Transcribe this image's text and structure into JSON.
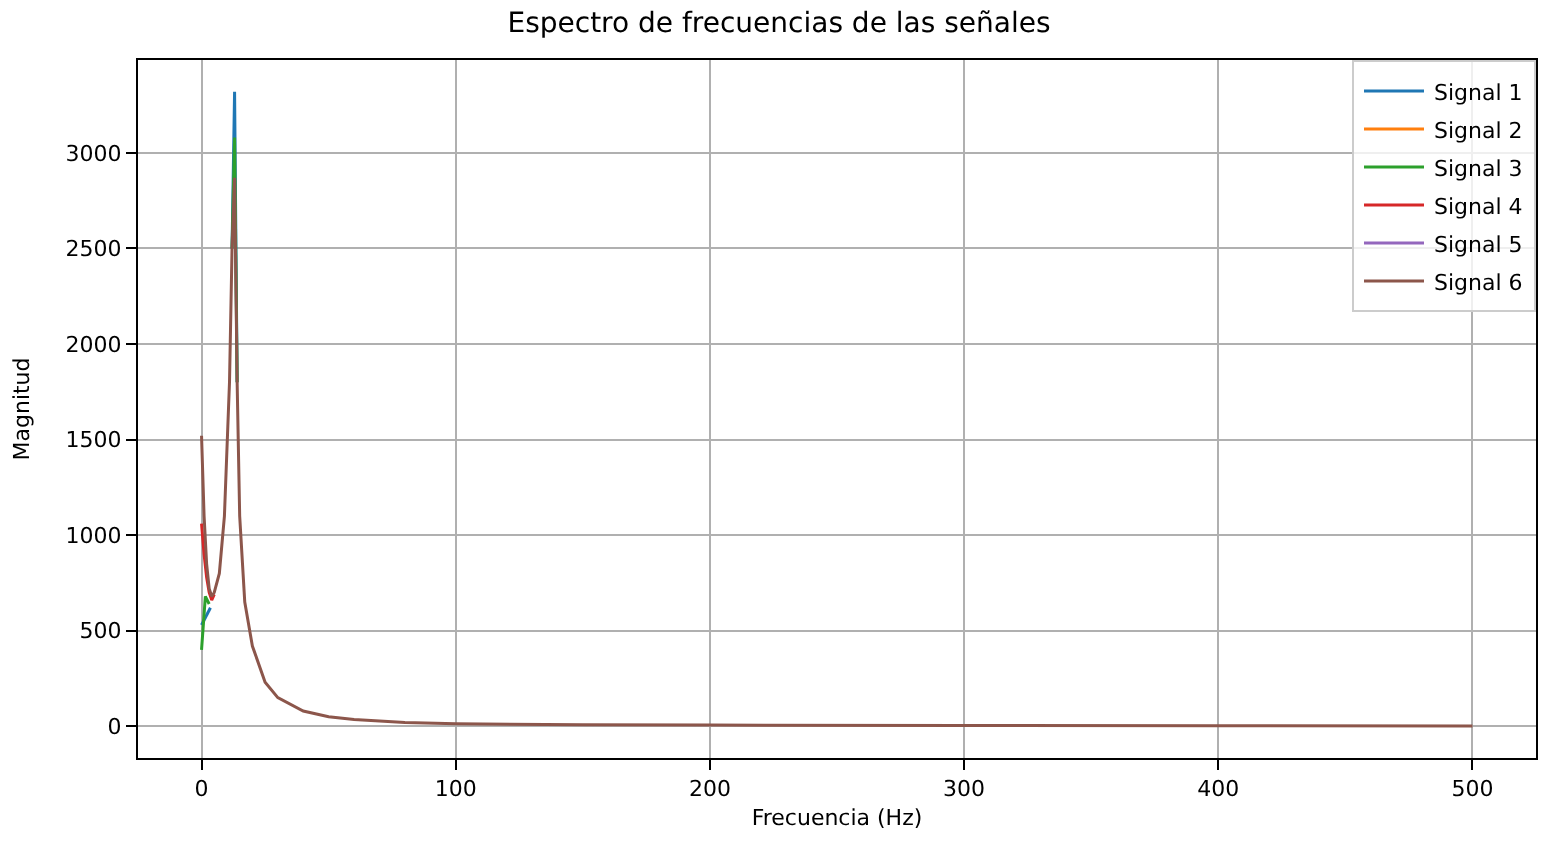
{
  "chart_data": {
    "type": "line",
    "title": "Espectro de frecuencias de las señales",
    "xlabel": "Frecuencia (Hz)",
    "ylabel": "Magnitud",
    "x": [
      0,
      1,
      2,
      3,
      4,
      5,
      7,
      9,
      11,
      12,
      13,
      14,
      15,
      17,
      20,
      25,
      30,
      40,
      50,
      60,
      80,
      100,
      150,
      200,
      300,
      400,
      500
    ],
    "series": [
      {
        "name": "Signal 1",
        "color": "#1f77b4",
        "x": [
          0,
          3.5,
          5,
          12,
          13,
          14
        ],
        "values": [
          530,
          620,
          null,
          2500,
          3320,
          1800
        ]
      },
      {
        "name": "Signal 2",
        "color": "#ff7f0e",
        "values": [
          null,
          null,
          null,
          null,
          null,
          null,
          null,
          null,
          null,
          null,
          null,
          null,
          null,
          null,
          null,
          null,
          null,
          null,
          null,
          null,
          null,
          null,
          null,
          null,
          null,
          null,
          null
        ]
      },
      {
        "name": "Signal 3",
        "color": "#2ca02c",
        "x": [
          0,
          1.5,
          3,
          5,
          12,
          13,
          14
        ],
        "values": [
          400,
          680,
          640,
          null,
          2500,
          3080,
          1800
        ]
      },
      {
        "name": "Signal 4",
        "color": "#d62728",
        "values": [
          1060,
          900,
          780,
          700,
          660,
          690,
          null,
          null,
          null,
          null,
          null,
          null,
          null,
          null,
          null,
          null,
          null,
          null,
          null,
          null,
          null,
          null,
          null,
          null,
          null,
          null,
          null
        ]
      },
      {
        "name": "Signal 5",
        "color": "#9467bd",
        "values": [
          null,
          null,
          null,
          null,
          null,
          null,
          null,
          null,
          null,
          null,
          null,
          null,
          null,
          null,
          null,
          null,
          null,
          null,
          null,
          null,
          null,
          null,
          null,
          null,
          null,
          null,
          null
        ]
      },
      {
        "name": "Signal 6",
        "color": "#8c564b",
        "values": [
          1520,
          1100,
          850,
          720,
          680,
          700,
          800,
          1100,
          1800,
          2500,
          2870,
          1800,
          1100,
          650,
          420,
          230,
          150,
          80,
          50,
          35,
          20,
          13,
          8,
          6,
          4,
          3,
          2
        ]
      }
    ],
    "xlim": [
      -25,
      525
    ],
    "ylim": [
      -166,
      3486
    ],
    "xticks": [
      0,
      100,
      200,
      300,
      400,
      500
    ],
    "yticks": [
      0,
      500,
      1000,
      1500,
      2000,
      2500,
      3000
    ],
    "grid": true,
    "legend": "top right",
    "marker": "none",
    "line_style": "solid"
  }
}
